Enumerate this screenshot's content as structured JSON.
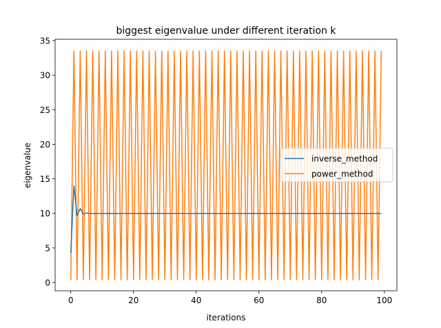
{
  "chart_data": {
    "type": "line",
    "title": "biggest eigenvalue under different iteration k",
    "xlabel": "iterations",
    "ylabel": "eigenvalue",
    "xlim": [
      -5,
      104
    ],
    "ylim": [
      -1.2,
      35.2
    ],
    "xticks": [
      0,
      20,
      40,
      60,
      80,
      100
    ],
    "yticks": [
      0,
      5,
      10,
      15,
      20,
      25,
      30,
      35
    ],
    "grid": false,
    "legend": "center-right",
    "series": [
      {
        "name": "inverse_method",
        "color": "#1f77b4",
        "x": [
          0,
          1,
          2,
          3,
          4,
          5,
          6,
          7,
          8,
          9,
          10,
          99
        ],
        "y": [
          4.3,
          14.0,
          9.7,
          10.7,
          9.9,
          10.05,
          10.0,
          10.0,
          10.0,
          10.0,
          10.0,
          10.0
        ]
      },
      {
        "name": "power_method",
        "color": "#ff7f0e",
        "pattern": "alternating",
        "x_start": 0,
        "x_end": 99,
        "low": 0.4,
        "high": 33.5
      }
    ]
  }
}
